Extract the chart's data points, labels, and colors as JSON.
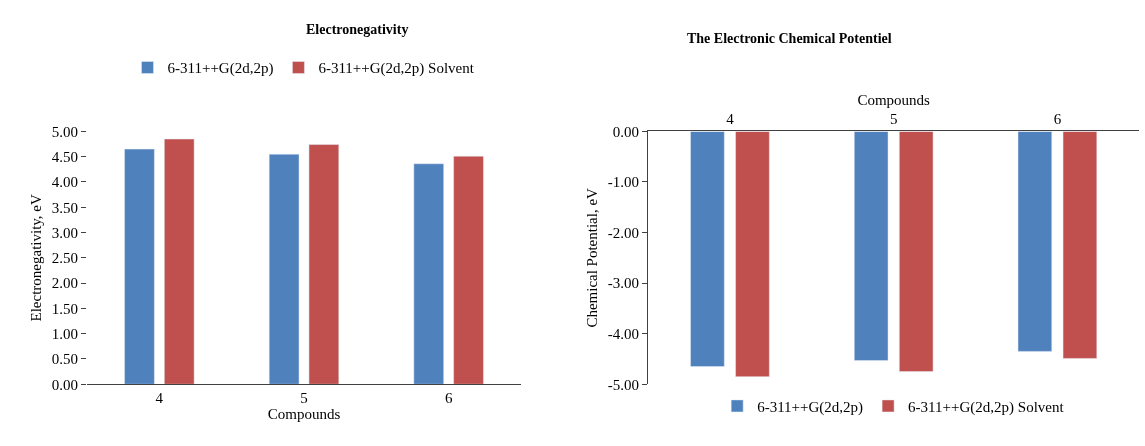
{
  "chart_data": [
    {
      "type": "bar",
      "title": "Electronegativity",
      "xlabel": "Compounds",
      "ylabel": "Electronegativity, eV",
      "categories": [
        "4",
        "5",
        "6"
      ],
      "ylim": [
        0,
        5
      ],
      "yticks": [
        {
          "value": 0,
          "label": "0.00"
        },
        {
          "value": 0.5,
          "label": "0.50"
        },
        {
          "value": 1,
          "label": "1.00"
        },
        {
          "value": 1.5,
          "label": "1.50"
        },
        {
          "value": 2,
          "label": "2.00"
        },
        {
          "value": 2.5,
          "label": "2.50"
        },
        {
          "value": 3,
          "label": "3.00"
        },
        {
          "value": 3.5,
          "label": "3.50"
        },
        {
          "value": 4,
          "label": "4.00"
        },
        {
          "value": 4.5,
          "label": "4.50"
        },
        {
          "value": 5,
          "label": "5.00"
        }
      ],
      "series": [
        {
          "name": "6-311++G(2d,2p)",
          "color": "#4f81bd",
          "values": [
            4.65,
            4.55,
            4.36
          ]
        },
        {
          "name": "6-311++G(2d,2p) Solvent",
          "color": "#c0504d",
          "values": [
            4.85,
            4.74,
            4.51
          ]
        }
      ],
      "legend": "top"
    },
    {
      "type": "bar",
      "title": "The Electronic Chemical Potentiel",
      "xlabel": "Compounds",
      "ylabel": "Chemical Potential, eV",
      "categories": [
        "4",
        "5",
        "6"
      ],
      "ylim": [
        -5,
        0
      ],
      "yticks": [
        {
          "value": 0,
          "label": "0.00"
        },
        {
          "value": -1,
          "label": "-1.00"
        },
        {
          "value": -2,
          "label": "-2.00"
        },
        {
          "value": -3,
          "label": "-3.00"
        },
        {
          "value": -4,
          "label": "-4.00"
        },
        {
          "value": -5,
          "label": "-5.00"
        }
      ],
      "series": [
        {
          "name": "6-311++G(2d,2p)",
          "color": "#4f81bd",
          "values": [
            -4.65,
            -4.53,
            -4.35
          ]
        },
        {
          "name": "6-311++G(2d,2p) Solvent",
          "color": "#c0504d",
          "values": [
            -4.85,
            -4.75,
            -4.49
          ]
        }
      ],
      "legend": "bottom"
    }
  ]
}
